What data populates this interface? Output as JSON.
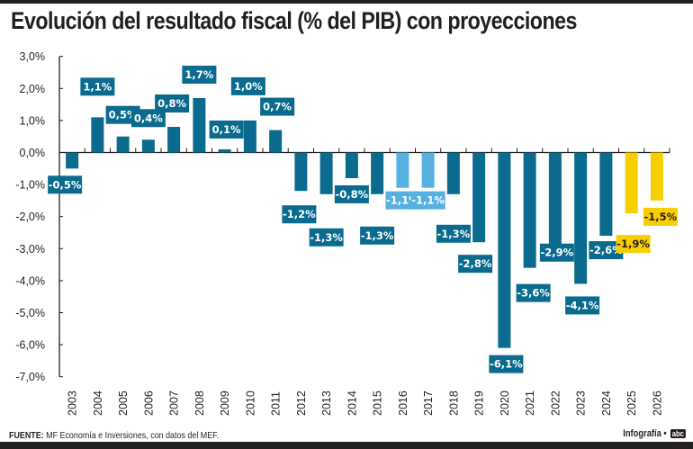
{
  "header": {
    "title": "Evolución del resultado fiscal (% del PIB) con proyecciones"
  },
  "footer": {
    "source_label": "FUENTE:",
    "source_text": " MF Economía e Inversiones, con datos del MEF.",
    "credit": "Infografía •",
    "logo": "abc"
  },
  "colors": {
    "historical": "#0a6b8f",
    "highlight": "#56b0e0",
    "projection": "#f7ce00",
    "axis": "#231f20"
  },
  "chart_data": {
    "type": "bar",
    "title": "Evolución del resultado fiscal (% del PIB) con proyecciones",
    "xlabel": "",
    "ylabel": "",
    "ylim": [
      -7,
      3
    ],
    "yticks": [
      3,
      2,
      1,
      0,
      -1,
      -2,
      -3,
      -4,
      -5,
      -6,
      -7
    ],
    "ytick_labels": [
      "3,0%",
      "2,0%",
      "1,0%",
      "0,0%",
      "-1,0%",
      "-2,0%",
      "-3,0%",
      "-4,0%",
      "-5,0%",
      "-6,0%",
      "-7,0%"
    ],
    "grid": false,
    "legend": "none",
    "categories": [
      "2003",
      "2004",
      "2005",
      "2006",
      "2007",
      "2008",
      "2009",
      "2010",
      "2011",
      "2012",
      "2013",
      "2014",
      "2015",
      "2016",
      "2017",
      "2018",
      "2019",
      "2020",
      "2021",
      "2022",
      "2023",
      "2024",
      "2025",
      "2026"
    ],
    "values": [
      -0.5,
      1.1,
      0.5,
      0.4,
      0.8,
      1.7,
      0.1,
      1.0,
      0.7,
      -1.2,
      -1.3,
      -0.8,
      -1.3,
      -1.1,
      -1.1,
      -1.3,
      -2.8,
      -6.1,
      -3.6,
      -2.9,
      -4.1,
      -2.6,
      -1.9,
      -1.5
    ],
    "labels": [
      "-0,5%",
      "1,1%",
      "0,5%",
      "0,4%",
      "0,8%",
      "1,7%",
      "0,1%",
      "1,0%",
      "0,7%",
      "-1,2%",
      "-1,3%",
      "-0,8%",
      "-1,3%",
      "-1,1%",
      "-1,1%",
      "-1,3%",
      "-2,8%",
      "-6,1%",
      "-3,6%",
      "-2,9%",
      "-4,1%",
      "-2,6%",
      "-1,9%",
      "-1,5%"
    ],
    "bar_kind": [
      "historical",
      "historical",
      "historical",
      "historical",
      "historical",
      "historical",
      "historical",
      "historical",
      "historical",
      "historical",
      "historical",
      "historical",
      "historical",
      "highlight",
      "highlight",
      "historical",
      "historical",
      "historical",
      "historical",
      "historical",
      "historical",
      "historical",
      "projection",
      "projection"
    ],
    "projection_years": [
      "2025",
      "2026"
    ]
  }
}
